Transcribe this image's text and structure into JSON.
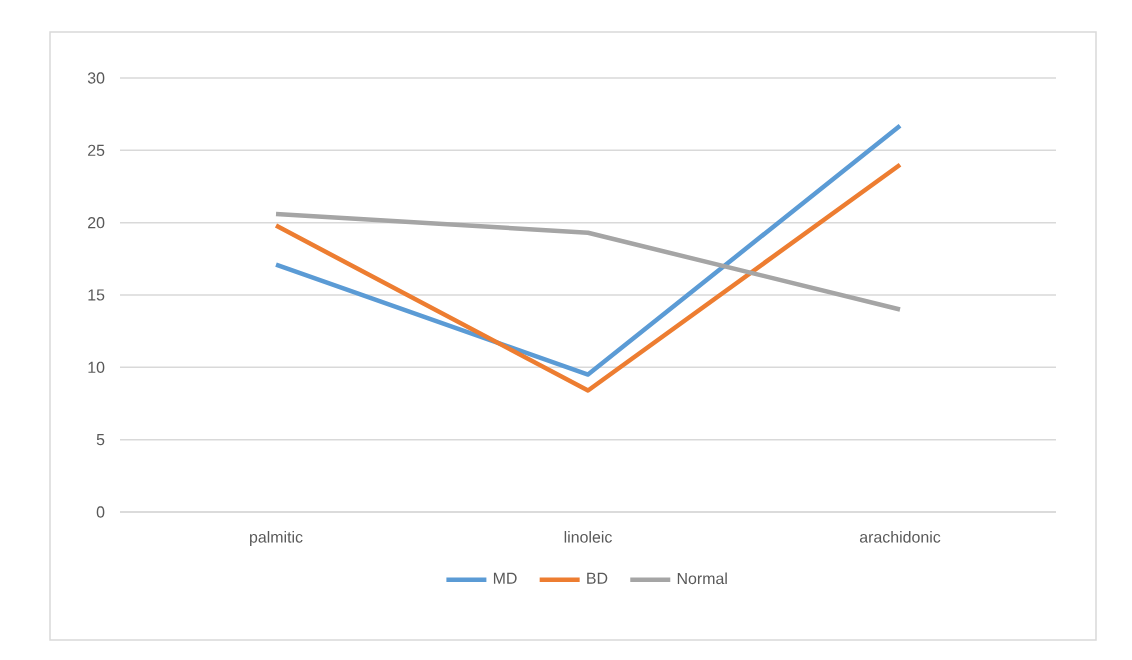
{
  "chart_data": {
    "type": "line",
    "categories": [
      "palmitic",
      "linoleic",
      "arachidonic"
    ],
    "series": [
      {
        "name": "MD",
        "color": "#5b9bd5",
        "values": [
          17.1,
          9.5,
          26.7
        ]
      },
      {
        "name": "BD",
        "color": "#ed7d31",
        "values": [
          19.8,
          8.4,
          24.0
        ]
      },
      {
        "name": "Normal",
        "color": "#a5a5a5",
        "values": [
          20.6,
          19.3,
          14.0
        ]
      }
    ],
    "ylim": [
      0,
      30
    ],
    "yticks": [
      0,
      5,
      10,
      15,
      20,
      25,
      30
    ],
    "grid": "y",
    "legend": "bottom",
    "marker": "none",
    "line_style": "solid"
  }
}
